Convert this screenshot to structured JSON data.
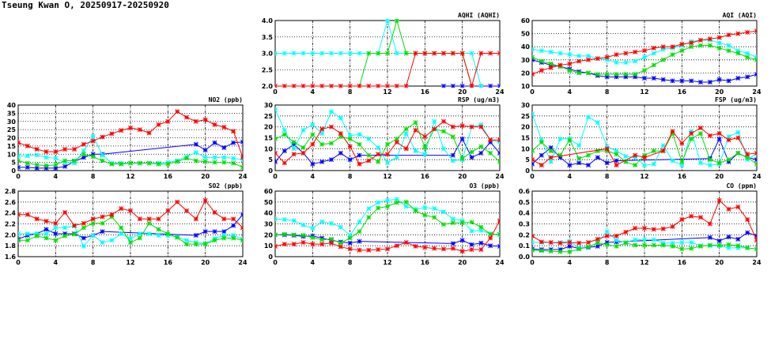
{
  "title": "Tseung Kwan O, 20250917-20250920",
  "series_colors": [
    "#0000ff",
    "#00ffff",
    "#00e000",
    "#ff0000"
  ],
  "chart_data": [
    {
      "type": "line",
      "title": "AQHI (AQHI)",
      "ylim": [
        2,
        4
      ],
      "ystep": 0.5,
      "decimals": 1,
      "xlim": [
        0,
        24
      ],
      "xticks": [
        0,
        4,
        8,
        12,
        16,
        20,
        24
      ],
      "grid": true,
      "series": [
        {
          "color": "#0000ff",
          "values": [
            null,
            null,
            null,
            null,
            null,
            null,
            null,
            null,
            null,
            null,
            null,
            null,
            null,
            null,
            null,
            null,
            null,
            null,
            2,
            2,
            2,
            2,
            2,
            2,
            2
          ]
        },
        {
          "color": "#00ffff",
          "values": [
            3,
            3,
            3,
            3,
            3,
            3,
            3,
            3,
            3,
            3,
            3,
            3,
            4,
            3,
            3,
            3,
            3,
            3,
            3,
            3,
            3,
            3,
            2,
            null,
            null
          ]
        },
        {
          "color": "#00e000",
          "values": [
            null,
            null,
            null,
            null,
            null,
            null,
            null,
            null,
            null,
            2,
            3,
            3,
            3,
            4,
            3,
            3,
            3,
            3,
            3,
            3,
            3,
            2,
            null,
            null,
            null
          ]
        },
        {
          "color": "#ff0000",
          "values": [
            2,
            2,
            2,
            2,
            2,
            2,
            2,
            2,
            2,
            2,
            2,
            2,
            2,
            2,
            2,
            3,
            3,
            3,
            3,
            3,
            3,
            2,
            3,
            3,
            3
          ]
        }
      ]
    },
    {
      "type": "line",
      "title": "AQI (AQI)",
      "ylim": [
        10,
        60
      ],
      "ystep": 10,
      "decimals": 0,
      "xlim": [
        0,
        24
      ],
      "xticks": [
        0,
        4,
        8,
        12,
        16,
        20,
        24
      ],
      "grid": true,
      "series": [
        {
          "color": "#0000ff",
          "values": [
            30,
            28,
            26,
            25,
            23,
            21,
            20,
            18,
            17,
            17,
            17,
            17,
            16,
            16,
            15,
            14,
            14,
            14,
            13,
            13,
            15,
            14,
            16,
            17,
            19
          ]
        },
        {
          "color": "#00ffff",
          "values": [
            38,
            37,
            36,
            35,
            34,
            33,
            33,
            31,
            30,
            28,
            28,
            29,
            32,
            35,
            38,
            39,
            41,
            44,
            45,
            45,
            43,
            41,
            37,
            35,
            32
          ]
        },
        {
          "color": "#00e000",
          "values": [
            32,
            29,
            27,
            25,
            22,
            20,
            20,
            19,
            19,
            19,
            19,
            19,
            22,
            26,
            30,
            34,
            37,
            40,
            41,
            41,
            39,
            37,
            35,
            32,
            30
          ]
        },
        {
          "color": "#ff0000",
          "values": [
            19,
            22,
            24,
            26,
            27,
            29,
            30,
            31,
            32,
            34,
            35,
            36,
            37,
            39,
            40,
            40,
            42,
            43,
            45,
            46,
            47,
            49,
            50,
            51,
            52
          ]
        }
      ]
    },
    {
      "type": "line",
      "title": "NO2 (ppb)",
      "ylim": [
        0,
        40
      ],
      "ystep": 5,
      "decimals": 0,
      "xlim": [
        0,
        24
      ],
      "xticks": [
        0,
        4,
        8,
        12,
        16,
        20,
        24
      ],
      "grid": true,
      "series": [
        {
          "color": "#0000ff",
          "values": [
            2,
            2,
            1.5,
            1.5,
            1.5,
            2.5,
            5.5,
            8,
            10,
            10,
            null,
            null,
            null,
            null,
            null,
            null,
            null,
            null,
            null,
            16,
            12.5,
            17,
            14,
            17,
            17.5
          ]
        },
        {
          "color": "#00ffff",
          "values": [
            9,
            9,
            9.5,
            8,
            7.5,
            5,
            4.5,
            12,
            21,
            9.5,
            4.5,
            4.5,
            4.5,
            4.5,
            4.5,
            4.5,
            5,
            6,
            8.5,
            11,
            8,
            8,
            8,
            7.5,
            6.5
          ]
        },
        {
          "color": "#00e000",
          "values": [
            6,
            4.5,
            3.5,
            3,
            3.5,
            6,
            6,
            10,
            8.5,
            6,
            4,
            4,
            4.5,
            4.5,
            4.5,
            4,
            4,
            5.5,
            7.5,
            6,
            5.5,
            5,
            5,
            4.5,
            2
          ]
        },
        {
          "color": "#ff0000",
          "values": [
            17,
            15,
            13,
            11.5,
            11.5,
            13,
            13,
            16,
            18,
            20.5,
            22.5,
            24.5,
            26,
            25,
            23,
            28,
            30,
            36,
            32.5,
            30,
            31,
            28,
            26.5,
            24,
            8
          ]
        }
      ]
    },
    {
      "type": "line",
      "title": "RSP (ug/m3)",
      "ylim": [
        0,
        30
      ],
      "ystep": 5,
      "decimals": 0,
      "xlim": [
        0,
        24
      ],
      "xticks": [
        0,
        4,
        8,
        12,
        16,
        20,
        24
      ],
      "grid": true,
      "series": [
        {
          "color": "#0000ff",
          "values": [
            4,
            9,
            12,
            8,
            3,
            4,
            5,
            8,
            5,
            7,
            null,
            null,
            null,
            null,
            null,
            null,
            null,
            null,
            null,
            7,
            14.5,
            6,
            8,
            13,
            8
          ]
        },
        {
          "color": "#00ffff",
          "values": [
            28,
            18.5,
            10,
            18.5,
            21,
            17,
            27,
            24,
            16,
            16.5,
            14.5,
            10.5,
            3.5,
            6,
            17,
            9,
            7.5,
            22.5,
            10,
            4.5,
            5,
            20,
            21,
            14,
            13
          ]
        },
        {
          "color": "#00e000",
          "values": [
            14.5,
            16.5,
            13,
            10.5,
            16.5,
            12,
            12.5,
            15.5,
            14.5,
            12,
            7,
            4,
            12,
            14.5,
            19,
            22,
            10.5,
            19,
            18,
            15.5,
            5.5,
            8.5,
            11,
            8,
            4
          ]
        },
        {
          "color": "#ff0000",
          "values": [
            8,
            3.5,
            7.5,
            8,
            12,
            19,
            20,
            17,
            11,
            3,
            4.5,
            7.5,
            7.5,
            13,
            10,
            18.5,
            15.5,
            19,
            22.5,
            20,
            20.5,
            20,
            20,
            14,
            14
          ]
        }
      ]
    },
    {
      "type": "line",
      "title": "FSP (ug/m3)",
      "ylim": [
        0,
        30
      ],
      "ystep": 5,
      "decimals": 0,
      "xlim": [
        0,
        24
      ],
      "xticks": [
        0,
        4,
        8,
        12,
        16,
        20,
        24
      ],
      "grid": true,
      "series": [
        {
          "color": "#0000ff",
          "values": [
            3,
            7,
            10.5,
            6,
            2.5,
            3.5,
            2.5,
            6,
            3.5,
            4.5,
            null,
            null,
            null,
            null,
            null,
            null,
            null,
            null,
            null,
            5.5,
            14.5,
            4,
            8,
            6,
            5
          ]
        },
        {
          "color": "#00ffff",
          "values": [
            26,
            14,
            4,
            14.5,
            14.5,
            11.5,
            24.5,
            22,
            11,
            9,
            6.5,
            6,
            2.5,
            3,
            11.5,
            4.5,
            2.5,
            18,
            3.5,
            2.5,
            3,
            15.5,
            17.5,
            5,
            8
          ]
        },
        {
          "color": "#00e000",
          "values": [
            9,
            13,
            9,
            7,
            14,
            5.5,
            7,
            9,
            9,
            7.5,
            4,
            2.5,
            7,
            9,
            9,
            17,
            4,
            14.5,
            17,
            5,
            3.5,
            5,
            8,
            6,
            3
          ]
        },
        {
          "color": "#ff0000",
          "values": [
            5,
            2.5,
            6,
            null,
            null,
            null,
            null,
            null,
            10,
            2.5,
            null,
            7,
            6,
            null,
            9,
            18,
            12.5,
            17,
            19.5,
            16,
            17,
            14,
            15,
            7.5,
            8
          ]
        }
      ]
    },
    {
      "type": "line",
      "title": "SO2 (ppb)",
      "ylim": [
        1.6,
        2.8
      ],
      "ystep": 0.2,
      "decimals": 1,
      "xlim": [
        0,
        24
      ],
      "xticks": [
        0,
        4,
        8,
        12,
        16,
        20,
        24
      ],
      "grid": true,
      "series": [
        {
          "color": "#0000ff",
          "values": [
            1.92,
            1.99,
            2.02,
            2.1,
            2.02,
            2.02,
            2.02,
            1.94,
            1.99,
            2.06,
            null,
            null,
            null,
            null,
            null,
            null,
            null,
            null,
            null,
            1.99,
            2.06,
            2.06,
            2.06,
            2.17,
            2.37
          ]
        },
        {
          "color": "#00ffff",
          "values": [
            2.02,
            2.02,
            2.02,
            2.02,
            2.13,
            2.13,
            2.16,
            1.79,
            1.99,
            1.86,
            1.9,
            2.02,
            1.93,
            2.02,
            2.02,
            1.99,
            1.99,
            1.96,
            1.9,
            1.86,
            1.84,
            1.93,
            1.99,
            1.99,
            1.92
          ]
        },
        {
          "color": "#00e000",
          "values": [
            1.9,
            1.9,
            1.98,
            1.94,
            1.9,
            1.98,
            2.01,
            2.13,
            2.21,
            2.21,
            2.33,
            2.13,
            1.86,
            1.94,
            2.21,
            2.1,
            2.02,
            1.95,
            1.83,
            1.83,
            1.83,
            1.9,
            1.94,
            1.94,
            1.9
          ]
        },
        {
          "color": "#ff0000",
          "values": [
            2.37,
            2.37,
            2.29,
            2.25,
            2.21,
            2.41,
            2.17,
            2.21,
            2.29,
            2.33,
            2.37,
            2.48,
            2.44,
            2.29,
            2.29,
            2.29,
            2.44,
            2.6,
            2.44,
            2.29,
            2.63,
            2.41,
            2.29,
            2.29,
            2.13
          ]
        }
      ]
    },
    {
      "type": "line",
      "title": "O3 (ppb)",
      "ylim": [
        0,
        60
      ],
      "ystep": 10,
      "decimals": 0,
      "xlim": [
        0,
        24
      ],
      "xticks": [
        0,
        4,
        8,
        12,
        16,
        20,
        24
      ],
      "grid": true,
      "series": [
        {
          "color": "#0000ff",
          "values": [
            20,
            20,
            19.5,
            18.5,
            19,
            17,
            15,
            13.5,
            12.5,
            14,
            null,
            null,
            null,
            null,
            null,
            null,
            null,
            null,
            null,
            12,
            15,
            11,
            12.5,
            10,
            9.5
          ]
        },
        {
          "color": "#00ffff",
          "values": [
            34.5,
            34,
            33,
            29,
            26,
            32,
            30.5,
            27,
            19.5,
            32,
            44,
            49.5,
            51.5,
            52.5,
            46,
            43.5,
            45,
            44,
            41,
            34.5,
            33,
            23.5,
            24,
            21,
            20
          ]
        },
        {
          "color": "#00e000",
          "values": [
            20,
            20.5,
            20,
            19.5,
            17.5,
            15.5,
            16,
            12.5,
            17,
            23,
            36,
            44.5,
            46,
            49.5,
            50,
            42,
            38,
            36,
            29.5,
            31,
            31,
            31.5,
            27,
            20.5,
            20.5
          ]
        },
        {
          "color": "#ff0000",
          "values": [
            9.5,
            11.5,
            11.5,
            13,
            11.5,
            11.5,
            12.5,
            9,
            7,
            6,
            6,
            6.5,
            7,
            10,
            13,
            9.5,
            8.5,
            7.5,
            7,
            7.5,
            5,
            6.5,
            6.5,
            17,
            33
          ]
        }
      ]
    },
    {
      "type": "line",
      "title": "CO (ppm)",
      "ylim": [
        0,
        0.6
      ],
      "ystep": 0.1,
      "decimals": 1,
      "xlim": [
        0,
        24
      ],
      "xticks": [
        0,
        4,
        8,
        12,
        16,
        20,
        24
      ],
      "grid": true,
      "series": [
        {
          "color": "#0000ff",
          "values": [
            0.07,
            0.065,
            0.065,
            0.065,
            0.095,
            0.075,
            0.085,
            0.095,
            0.13,
            0.135,
            null,
            null,
            null,
            null,
            null,
            null,
            null,
            null,
            null,
            0.175,
            0.145,
            0.18,
            0.16,
            0.22,
            0.19
          ]
        },
        {
          "color": "#00ffff",
          "values": [
            0.13,
            0.13,
            0.13,
            0.13,
            0.14,
            0.08,
            0.09,
            0.13,
            0.23,
            0.15,
            0.13,
            0.155,
            0.155,
            0.155,
            0.125,
            0.125,
            0.13,
            0.13,
            0.1,
            0.1,
            0.1,
            0.08,
            0.08,
            0.08,
            0.07
          ]
        },
        {
          "color": "#00e000",
          "values": [
            0.06,
            0.055,
            0.05,
            0.045,
            0.045,
            0.07,
            0.09,
            0.125,
            0.11,
            0.095,
            0.125,
            0.105,
            0.105,
            0.105,
            0.105,
            0.095,
            0.07,
            0.075,
            0.095,
            0.105,
            0.105,
            0.11,
            0.1,
            0.08,
            0.07
          ]
        },
        {
          "color": "#ff0000",
          "values": [
            0.19,
            0.135,
            0.13,
            0.125,
            0.13,
            0.125,
            0.13,
            0.16,
            0.19,
            0.19,
            0.225,
            0.26,
            0.26,
            0.25,
            0.255,
            0.275,
            0.34,
            0.37,
            0.36,
            0.3,
            0.515,
            0.435,
            0.455,
            0.34,
            0.15
          ]
        }
      ]
    }
  ]
}
